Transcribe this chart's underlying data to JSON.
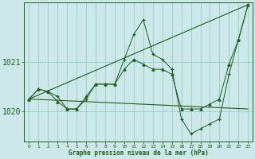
{
  "background_color": "#cce8e8",
  "grid_color": "#99cccc",
  "line_color": "#1e5e1e",
  "x_values": [
    0,
    1,
    2,
    3,
    4,
    5,
    6,
    7,
    8,
    9,
    10,
    11,
    12,
    13,
    14,
    15,
    16,
    17,
    18,
    19,
    20,
    21,
    22,
    23
  ],
  "series1": [
    1020.25,
    1020.45,
    1020.4,
    1020.3,
    1020.05,
    1020.05,
    1020.25,
    1020.55,
    1020.55,
    1020.55,
    1021.05,
    1021.55,
    1021.85,
    1021.15,
    1021.05,
    1020.85,
    1019.85,
    1019.55,
    1019.65,
    1019.75,
    1019.85,
    1020.75,
    1021.45,
    1022.15
  ],
  "series2": [
    1020.25,
    1020.45,
    1020.4,
    1020.2,
    1020.05,
    1020.05,
    1020.3,
    1020.55,
    1020.55,
    1020.55,
    1020.85,
    1021.05,
    1020.95,
    1020.85,
    1020.85,
    1020.75,
    1020.05,
    1020.05,
    1020.05,
    1020.15,
    1020.25,
    1020.95,
    1021.45,
    1022.15
  ],
  "trend1": [
    1020.25,
    1022.15
  ],
  "trend2": [
    1020.25,
    1020.05
  ],
  "ylim": [
    1019.4,
    1022.2
  ],
  "yticks": [
    1020.0,
    1021.0
  ],
  "ytick_labels": [
    "1020",
    "1021"
  ],
  "xlim": [
    -0.5,
    23.5
  ],
  "xlabel": "Graphe pression niveau de la mer (hPa)"
}
